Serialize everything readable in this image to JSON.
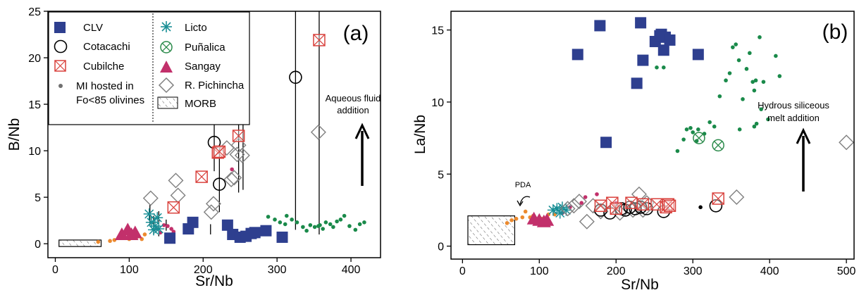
{
  "colors": {
    "clv": "#2e3f8f",
    "cubilche": "#d9413c",
    "licto": "#1a8f96",
    "punalica": "#2a8a4a",
    "sangay": "#c2306b",
    "pichincha": "#808080",
    "mi_green": "#1a8a4a",
    "mi_orange": "#ec8a2e",
    "mi_magenta": "#c2306b",
    "black": "#000000"
  },
  "legend": {
    "clv": "CLV",
    "cotacachi": "Cotacachi",
    "cubilche": "Cubilche",
    "mi_line1": "MI hosted in",
    "mi_line2": "Fo<85 olivines",
    "licto": "Licto",
    "punalica": "Puñalica",
    "sangay": "Sangay",
    "pichincha": "R. Pichincha",
    "morb": "MORB"
  },
  "chart_data": [
    {
      "panel": "(a)",
      "type": "scatter",
      "xlabel": "Sr/Nb",
      "ylabel": "B/Nb",
      "xlim": [
        -10,
        440
      ],
      "ylim": [
        -1.5,
        25
      ],
      "xticks": [
        0,
        100,
        200,
        300,
        400
      ],
      "yticks": [
        0,
        5,
        10,
        15,
        20,
        25
      ],
      "annotation": [
        "Aqueous fluid",
        "addition"
      ],
      "morb_box": {
        "x": [
          5,
          62
        ],
        "y": [
          -0.3,
          0.4
        ]
      },
      "series": [
        {
          "name": "CLV",
          "marker": "square",
          "points": [
            [
              155,
              0.6
            ],
            [
              180,
              1.6
            ],
            [
              186,
              2.3
            ],
            [
              233,
              2.0
            ],
            [
              240,
              1.0
            ],
            [
              250,
              0.7
            ],
            [
              258,
              0.8
            ],
            [
              265,
              1.1
            ],
            [
              270,
              1.2
            ],
            [
              285,
              1.4
            ],
            [
              307,
              0.7
            ]
          ]
        },
        {
          "name": "Cotacachi",
          "marker": "circle",
          "points": [
            [
              215,
              10.9
            ],
            [
              222,
              6.4
            ],
            [
              325,
              17.9
            ]
          ]
        },
        {
          "name": "Cubilche",
          "marker": "boxcross",
          "points": [
            [
              160,
              3.9
            ],
            [
              198,
              7.2
            ],
            [
              220,
              9.8
            ],
            [
              222,
              9.9
            ],
            [
              248,
              11.6
            ],
            [
              252,
              14.6
            ],
            [
              357,
              21.9
            ]
          ]
        },
        {
          "name": "Licto",
          "marker": "star",
          "points": [
            [
              127,
              3.2
            ],
            [
              133,
              1.5
            ],
            [
              135,
              1.9
            ],
            [
              138,
              2.8
            ],
            [
              130,
              2.3
            ],
            [
              140,
              1.6
            ]
          ]
        },
        {
          "name": "Sangay",
          "marker": "triangle",
          "points": [
            [
              90,
              1.0
            ],
            [
              98,
              1.5
            ],
            [
              103,
              1.0
            ],
            [
              108,
              1.2
            ]
          ]
        },
        {
          "name": "R. Pichincha",
          "marker": "diamond",
          "points": [
            [
              129,
              4.9
            ],
            [
              163,
              6.8
            ],
            [
              166,
              5.2
            ],
            [
              211,
              3.4
            ],
            [
              214,
              4.3
            ],
            [
              232,
              10.3
            ],
            [
              238,
              6.9
            ],
            [
              242,
              7.1
            ],
            [
              246,
              9.6
            ],
            [
              248,
              10.6
            ],
            [
              253,
              9.5
            ],
            [
              356,
              12.0
            ]
          ]
        },
        {
          "name": "MI hosted in Fo<85 olivines",
          "marker": "dot",
          "points": [
            [
              288,
              2.9
            ],
            [
              297,
              2.6
            ],
            [
              304,
              2.3
            ],
            [
              311,
              2.1
            ],
            [
              320,
              2.6
            ],
            [
              327,
              2.3
            ],
            [
              313,
              3.0
            ],
            [
              340,
              1.4
            ],
            [
              345,
              2.0
            ],
            [
              351,
              1.8
            ],
            [
              358,
              2.0
            ],
            [
              362,
              1.6
            ],
            [
              366,
              2.3
            ],
            [
              372,
              2.1
            ],
            [
              376,
              1.8
            ],
            [
              381,
              2.4
            ],
            [
              386,
              2.6
            ],
            [
              391,
              3.0
            ],
            [
              398,
              1.9
            ],
            [
              406,
              1.5
            ],
            [
              412,
              2.1
            ],
            [
              418,
              2.3
            ],
            [
              335,
              1.8
            ],
            [
              356,
              1.9
            ],
            [
              58,
              0.2
            ],
            [
              74,
              0.3
            ],
            [
              80,
              0.4
            ],
            [
              100,
              0.5
            ],
            [
              110,
              0.7
            ],
            [
              117,
              0.5
            ],
            [
              121,
              1.0
            ],
            [
              138,
              1.6
            ],
            [
              142,
              1.2
            ],
            [
              152,
              1.9
            ],
            [
              157,
              1.6
            ],
            [
              160,
              1.3
            ],
            [
              147,
              2.0
            ],
            [
              239,
              8.0
            ],
            [
              257,
              14.9
            ]
          ]
        },
        {
          "name": "error_bars",
          "marker": "errorbar",
          "points": [
            [
              128,
              2.0,
              4.2
            ],
            [
              133,
              1.0,
              3.0
            ],
            [
              140,
              0.8,
              3.5
            ],
            [
              150,
              1.4,
              2.6
            ],
            [
              210,
              1.0,
              2.1
            ],
            [
              215,
              7.8,
              15.5
            ],
            [
              222,
              3.4,
              10.3
            ],
            [
              248,
              5.5,
              19.6
            ],
            [
              254,
              5.8,
              21.6
            ],
            [
              325,
              1.5,
              26.0
            ],
            [
              357,
              1.0,
              26.0
            ]
          ]
        }
      ]
    },
    {
      "panel": "(b)",
      "type": "scatter",
      "xlabel": "Sr/Nb",
      "ylabel": "La/Nb",
      "xlim": [
        -15,
        510
      ],
      "ylim": [
        -0.9,
        16.3
      ],
      "xticks": [
        0,
        100,
        200,
        300,
        400,
        500
      ],
      "yticks": [
        0,
        5,
        10,
        15
      ],
      "annotation": [
        "Hydrous siliceous",
        "melt addition"
      ],
      "pda_label": "PDA",
      "morb_box": {
        "x": [
          7,
          68
        ],
        "y": [
          0.1,
          2.1
        ]
      },
      "series": [
        {
          "name": "CLV",
          "marker": "square",
          "points": [
            [
              150,
              13.3
            ],
            [
              179,
              15.3
            ],
            [
              187,
              7.2
            ],
            [
              227,
              11.3
            ],
            [
              232,
              15.5
            ],
            [
              235,
              12.9
            ],
            [
              251,
              14.2
            ],
            [
              257,
              14.6
            ],
            [
              259,
              14.7
            ],
            [
              262,
              13.6
            ],
            [
              264,
              14.5
            ],
            [
              270,
              14.3
            ],
            [
              307,
              13.3
            ]
          ]
        },
        {
          "name": "Cotacachi",
          "marker": "circle",
          "points": [
            [
              180,
              2.5
            ],
            [
              192,
              2.3
            ],
            [
              207,
              2.6
            ],
            [
              212,
              2.5
            ],
            [
              218,
              2.7
            ],
            [
              225,
              2.6
            ],
            [
              232,
              2.7
            ],
            [
              240,
              2.6
            ],
            [
              262,
              2.4
            ],
            [
              330,
              2.8
            ]
          ]
        },
        {
          "name": "Cubilche",
          "marker": "boxcross",
          "points": [
            [
              180,
              2.8
            ],
            [
              195,
              3.0
            ],
            [
              200,
              2.6
            ],
            [
              220,
              3.0
            ],
            [
              235,
              2.9
            ],
            [
              253,
              2.9
            ],
            [
              265,
              2.7
            ],
            [
              268,
              2.9
            ],
            [
              270,
              2.8
            ],
            [
              333,
              3.3
            ]
          ]
        },
        {
          "name": "Licto",
          "marker": "star",
          "points": [
            [
              118,
              2.5
            ],
            [
              123,
              2.6
            ],
            [
              127,
              2.3
            ],
            [
              130,
              2.7
            ],
            [
              135,
              2.5
            ]
          ]
        },
        {
          "name": "Puñalica",
          "marker": "circlecross",
          "points": [
            [
              308,
              7.5
            ],
            [
              333,
              7.0
            ]
          ]
        },
        {
          "name": "Sangay",
          "marker": "triangle",
          "points": [
            [
              93,
              1.9
            ],
            [
              100,
              1.8
            ],
            [
              106,
              1.7
            ],
            [
              110,
              1.8
            ]
          ]
        },
        {
          "name": "R. Pichincha",
          "marker": "diamond",
          "points": [
            [
              137,
              2.6
            ],
            [
              145,
              2.8
            ],
            [
              152,
              3.1
            ],
            [
              162,
              1.7
            ],
            [
              170,
              2.8
            ],
            [
              180,
              2.4
            ],
            [
              205,
              2.3
            ],
            [
              222,
              2.5
            ],
            [
              230,
              3.6
            ],
            [
              235,
              2.5
            ],
            [
              240,
              3.0
            ],
            [
              357,
              3.4
            ],
            [
              500,
              7.2
            ]
          ]
        },
        {
          "name": "MI hosted in Fo<85 olivines",
          "marker": "dot",
          "points": [
            [
              253,
              12.4
            ],
            [
              262,
              12.4
            ],
            [
              280,
              6.6
            ],
            [
              288,
              7.4
            ],
            [
              292,
              8.1
            ],
            [
              297,
              8.2
            ],
            [
              300,
              7.9
            ],
            [
              305,
              7.3
            ],
            [
              307,
              8.1
            ],
            [
              315,
              7.8
            ],
            [
              322,
              8.6
            ],
            [
              328,
              8.3
            ],
            [
              335,
              10.4
            ],
            [
              343,
              11.5
            ],
            [
              348,
              12.0
            ],
            [
              352,
              13.8
            ],
            [
              356,
              14.0
            ],
            [
              360,
              12.9
            ],
            [
              361,
              8.1
            ],
            [
              365,
              10.2
            ],
            [
              370,
              12.3
            ],
            [
              374,
              13.4
            ],
            [
              378,
              11.4
            ],
            [
              380,
              10.8
            ],
            [
              382,
              11.5
            ],
            [
              387,
              14.5
            ],
            [
              392,
              11.4
            ],
            [
              398,
              8.8
            ],
            [
              408,
              13.2
            ],
            [
              413,
              11.8
            ],
            [
              380,
              8.3
            ],
            [
              383,
              8.5
            ],
            [
              389,
              9.5
            ],
            [
              58,
              1.6
            ],
            [
              64,
              1.8
            ],
            [
              70,
              1.9
            ],
            [
              78,
              2.0
            ],
            [
              82,
              2.4
            ],
            [
              88,
              2.0
            ],
            [
              92,
              2.1
            ],
            [
              103,
              1.9
            ],
            [
              112,
              2.2
            ],
            [
              120,
              2.2
            ],
            [
              130,
              2.3
            ],
            [
              140,
              2.7
            ],
            [
              155,
              3.0
            ],
            [
              160,
              3.4
            ],
            [
              175,
              3.6
            ],
            [
              200,
              3.0
            ],
            [
              310,
              2.7
            ]
          ]
        }
      ]
    }
  ]
}
